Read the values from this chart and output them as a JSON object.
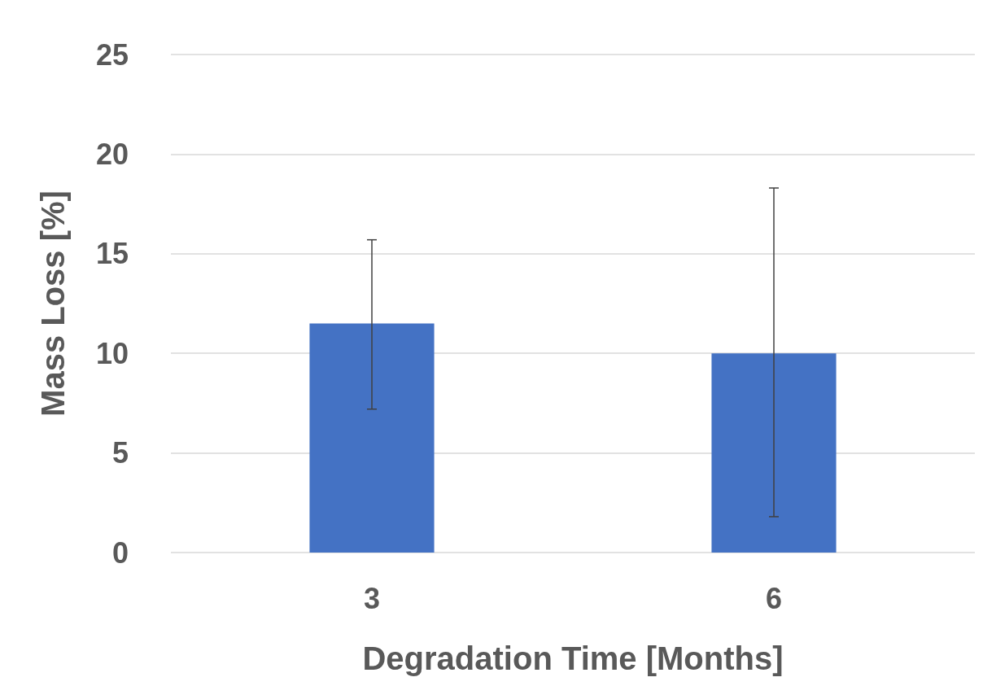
{
  "chart_data": {
    "type": "bar",
    "xlabel": "Degradation Time [Months]",
    "ylabel": "Mass Loss [%]",
    "categories": [
      "3",
      "6"
    ],
    "values": [
      11.5,
      10
    ],
    "errors": [
      [
        7.2,
        15.7
      ],
      [
        1.8,
        18.3
      ]
    ],
    "color": "#4472c4",
    "ylim": [
      0,
      25
    ],
    "yticks": [
      0,
      5,
      10,
      15,
      20,
      25
    ],
    "grid": "y"
  }
}
